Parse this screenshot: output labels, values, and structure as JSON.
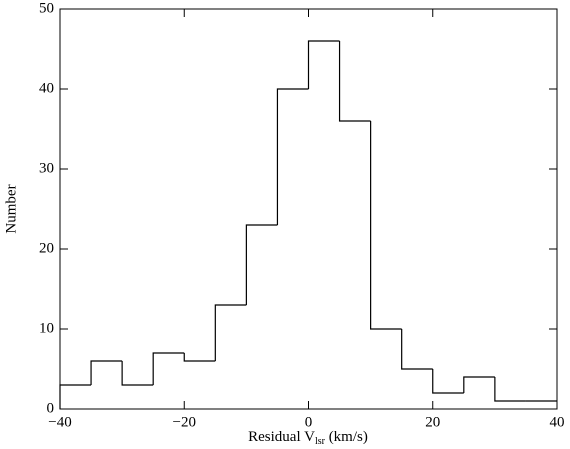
{
  "chart_data": {
    "type": "histogram",
    "xlabel": {
      "text": "Residual V",
      "sub": "lsr",
      "rest": " (km/s)"
    },
    "ylabel": "Number",
    "bins": [
      -40,
      -35,
      -30,
      -25,
      -20,
      -15,
      -10,
      -5,
      0,
      5,
      10,
      15,
      20,
      25,
      30,
      35,
      40
    ],
    "values": [
      3,
      6,
      3,
      7,
      6,
      13,
      23,
      40,
      46,
      36,
      10,
      5,
      2,
      4,
      1,
      1
    ],
    "color": "#000000",
    "xlim": [
      -40,
      40
    ],
    "xticks": [
      {
        "value": -40,
        "label": "−40"
      },
      {
        "value": -20,
        "label": "−20"
      },
      0,
      20,
      40
    ],
    "ylim": [
      0,
      50
    ],
    "yticks": [
      0,
      10,
      20,
      30,
      40,
      50
    ]
  }
}
